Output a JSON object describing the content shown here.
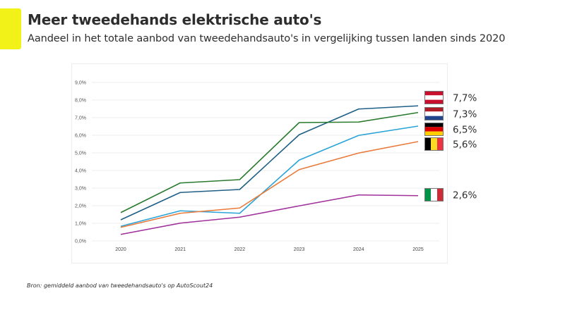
{
  "header": {
    "accent_color": "#f2f218",
    "title": "Meer tweedehands elektrische auto's",
    "subtitle": "Aandeel in het totale aanbod van tweedehandsauto's in vergelijking tussen landen sinds 2020"
  },
  "source": "Bron: gemiddeld aanbod van tweedehandsauto's op AutoScout24",
  "chart_data": {
    "type": "line",
    "title": "Meer tweedehands elektrische auto's",
    "subtitle": "Aandeel in het totale aanbod van tweedehandsauto's in vergelijking tussen landen sinds 2020",
    "xlabel": "",
    "ylabel": "",
    "x": [
      "2020",
      "2021",
      "2022",
      "2023",
      "2024",
      "2025"
    ],
    "ylim": [
      0,
      9
    ],
    "yticks": [
      0,
      1,
      2,
      3,
      4,
      5,
      6,
      7,
      8,
      9
    ],
    "ytick_labels": [
      "0,0%",
      "1,0%",
      "2,0%",
      "3,0%",
      "4,0%",
      "5,0%",
      "6,0%",
      "7,0%",
      "8,0%",
      "9,0%"
    ],
    "grid": true,
    "legend": "flags at right end of lines",
    "series": [
      {
        "name": "Oostenrijk",
        "flag": "austria",
        "color": "#1f5f86",
        "values": [
          1.2,
          2.75,
          2.92,
          6.03,
          7.49,
          7.67
        ],
        "end_label": "7,7%"
      },
      {
        "name": "Nederland",
        "flag": "netherlands",
        "color": "#2a7a2e",
        "values": [
          1.61,
          3.29,
          3.48,
          6.72,
          6.75,
          7.29
        ],
        "end_label": "7,3%"
      },
      {
        "name": "Duitsland",
        "flag": "germany",
        "color": "#2aa4d8",
        "values": [
          0.83,
          1.71,
          1.57,
          4.59,
          5.99,
          6.52
        ],
        "end_label": "6,5%"
      },
      {
        "name": "België",
        "flag": "belgium",
        "color": "#e97a3a",
        "values": [
          0.77,
          1.57,
          1.87,
          4.05,
          4.99,
          5.64
        ],
        "end_label": "5,6%"
      },
      {
        "name": "Italië",
        "flag": "italy",
        "color": "#a0309a",
        "values": [
          0.37,
          1.01,
          1.35,
          1.99,
          2.61,
          2.57
        ],
        "end_label": "2,6%"
      }
    ]
  }
}
